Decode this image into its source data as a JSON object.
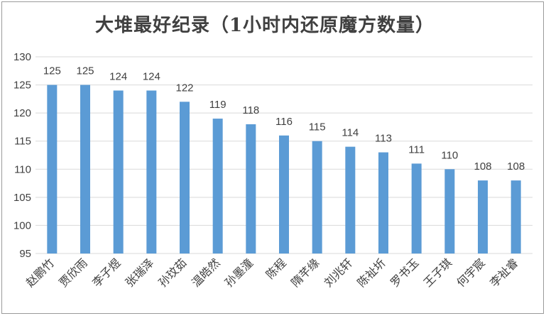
{
  "chart_data": {
    "type": "bar",
    "title": "大堆最好纪录（1小时内还原魔方数量）",
    "categories": [
      "赵鹏竹",
      "贾欣雨",
      "李子煜",
      "张瑞泽",
      "孙玟茹",
      "温皓然",
      "孙墨潼",
      "陈程",
      "隋芊缘",
      "刘兆轩",
      "陈祉圻",
      "罗书玉",
      "王子琪",
      "何宇宸",
      "李祉睿"
    ],
    "values": [
      125,
      125,
      124,
      124,
      122,
      119,
      118,
      116,
      115,
      114,
      113,
      111,
      110,
      108,
      108
    ],
    "xlabel": "",
    "ylabel": "",
    "ylim": [
      95,
      130
    ],
    "yticks": [
      95,
      100,
      105,
      110,
      115,
      120,
      125,
      130
    ],
    "grid": true,
    "legend": "none",
    "colors": {
      "bar": "#5b9bd5",
      "grid": "#d9d9d9",
      "text": "#404040"
    }
  }
}
